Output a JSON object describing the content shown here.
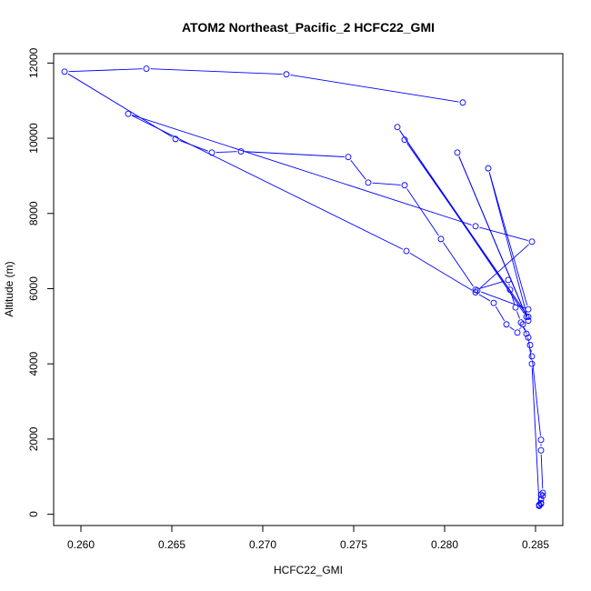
{
  "chart_data": {
    "type": "line",
    "title": "ATOM2 Northeast_Pacific_2 HCFC22_GMI",
    "xlabel": "HCFC22_GMI",
    "ylabel": "Altitude (m)",
    "xlim": [
      0.2585,
      0.2865
    ],
    "ylim": [
      -300,
      12250
    ],
    "xticks": [
      0.26,
      0.265,
      0.27,
      0.275,
      0.28,
      0.285
    ],
    "xtick_labels": [
      "0.260",
      "0.265",
      "0.270",
      "0.275",
      "0.280",
      "0.285"
    ],
    "yticks": [
      0,
      2000,
      4000,
      6000,
      8000,
      10000,
      12000
    ],
    "ytick_labels": [
      "0",
      "2000",
      "4000",
      "6000",
      "8000",
      "10000",
      "12000"
    ],
    "grid": false,
    "color": "#0000ff",
    "marker": "open-circle",
    "series": [
      {
        "x": [
          0.281,
          0.2713,
          0.2636,
          0.2591,
          0.2652,
          0.2672,
          0.2688,
          0.2747,
          0.2758,
          0.2778,
          0.2798,
          0.2817,
          0.2835,
          0.2836,
          0.2839,
          0.2842,
          0.2845,
          0.2847,
          0.2848,
          0.2853,
          0.2853,
          0.2854,
          0.2854,
          0.2853,
          0.2852,
          0.2853,
          0.2853,
          0.2853,
          0.2852,
          0.2848,
          0.2846,
          0.2843,
          0.284,
          0.2834,
          0.2827,
          0.2817,
          0.2779,
          0.2626,
          0.2817,
          0.2848,
          0.2818,
          0.2846,
          0.2824,
          0.2846,
          0.2807,
          0.2845,
          0.2774,
          0.2846,
          0.2778
        ],
        "y": [
          10950,
          11700,
          11850,
          11770,
          9980,
          9620,
          9650,
          9500,
          8820,
          8750,
          7320,
          5970,
          6230,
          5970,
          5500,
          5100,
          4800,
          4500,
          4200,
          1980,
          1700,
          570,
          490,
          280,
          220,
          400,
          520,
          300,
          250,
          4000,
          4700,
          5050,
          4830,
          5050,
          5620,
          5900,
          7000,
          10650,
          7660,
          7250,
          5950,
          5450,
          9200,
          5150,
          9620,
          5250,
          10300,
          5250,
          9960
        ]
      }
    ]
  }
}
